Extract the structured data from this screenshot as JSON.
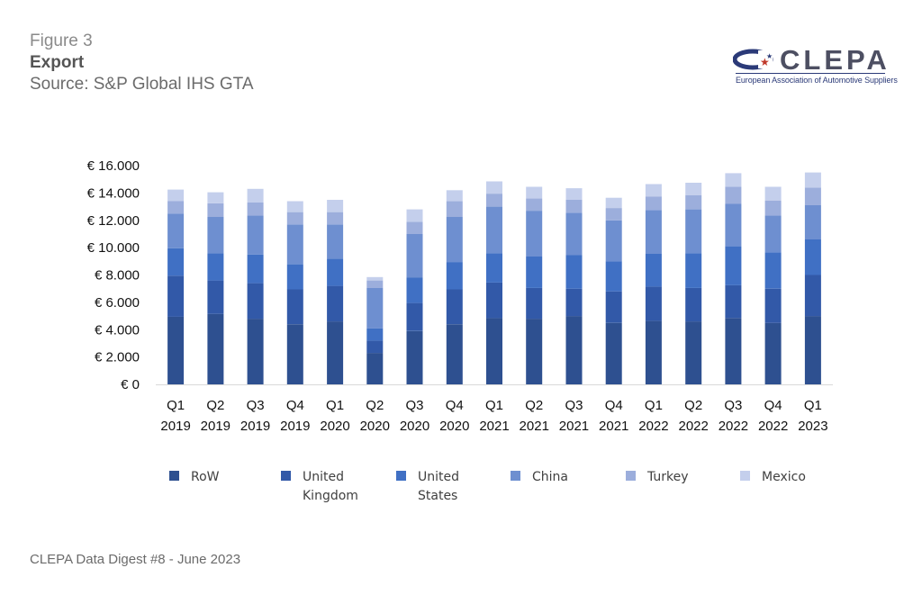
{
  "header": {
    "figure_label": "Figure 3",
    "title": "Export",
    "source": "Source: S&P Global IHS GTA"
  },
  "logo": {
    "wordmark": "CLEPA",
    "tagline": "European Association of Automotive Suppliers"
  },
  "footer": {
    "text": "CLEPA Data Digest #8 - June 2023"
  },
  "chart_data": {
    "type": "bar",
    "stacked": true,
    "grid": false,
    "legend_position": "bottom",
    "ylim": [
      0,
      16000
    ],
    "y_ticks": [
      {
        "value": 0,
        "label": "€ 0"
      },
      {
        "value": 2000,
        "label": "€ 2.000"
      },
      {
        "value": 4000,
        "label": "€ 4.000"
      },
      {
        "value": 6000,
        "label": "€ 6.000"
      },
      {
        "value": 8000,
        "label": "€ 8.000"
      },
      {
        "value": 10000,
        "label": "€ 10.000"
      },
      {
        "value": 12000,
        "label": "€ 12.000"
      },
      {
        "value": 14000,
        "label": "€ 14.000"
      },
      {
        "value": 16000,
        "label": "€ 16.000"
      }
    ],
    "categories": [
      {
        "quarter": "Q1",
        "year": "2019"
      },
      {
        "quarter": "Q2",
        "year": "2019"
      },
      {
        "quarter": "Q3",
        "year": "2019"
      },
      {
        "quarter": "Q4",
        "year": "2019"
      },
      {
        "quarter": "Q1",
        "year": "2020"
      },
      {
        "quarter": "Q2",
        "year": "2020"
      },
      {
        "quarter": "Q3",
        "year": "2020"
      },
      {
        "quarter": "Q4",
        "year": "2020"
      },
      {
        "quarter": "Q1",
        "year": "2021"
      },
      {
        "quarter": "Q2",
        "year": "2021"
      },
      {
        "quarter": "Q3",
        "year": "2021"
      },
      {
        "quarter": "Q4",
        "year": "2021"
      },
      {
        "quarter": "Q1",
        "year": "2022"
      },
      {
        "quarter": "Q2",
        "year": "2022"
      },
      {
        "quarter": "Q3",
        "year": "2022"
      },
      {
        "quarter": "Q4",
        "year": "2022"
      },
      {
        "quarter": "Q1",
        "year": "2023"
      }
    ],
    "series": [
      {
        "name": "RoW",
        "color": "#2e5090",
        "values": [
          4950,
          5150,
          4800,
          4400,
          4600,
          2300,
          3900,
          4400,
          4850,
          4800,
          5000,
          4500,
          4650,
          4600,
          4850,
          4500,
          5000
        ]
      },
      {
        "name": "United Kingdom",
        "color": "#3259a8",
        "values": [
          3000,
          2450,
          2600,
          2550,
          2600,
          900,
          2050,
          2550,
          2600,
          2250,
          2000,
          2300,
          2500,
          2450,
          2400,
          2500,
          3000
        ]
      },
      {
        "name": "United States",
        "color": "#4070c4",
        "values": [
          2000,
          2000,
          2100,
          1850,
          2000,
          900,
          1850,
          2000,
          2150,
          2300,
          2450,
          2200,
          2400,
          2550,
          2850,
          2650,
          2600
        ]
      },
      {
        "name": "China",
        "color": "#6e8fd0",
        "values": [
          2550,
          2650,
          2850,
          2900,
          2500,
          2950,
          3200,
          3300,
          3400,
          3350,
          3100,
          3000,
          3200,
          3200,
          3100,
          2700,
          2500
        ]
      },
      {
        "name": "Turkey",
        "color": "#9caedc",
        "values": [
          900,
          1000,
          950,
          900,
          900,
          550,
          900,
          1150,
          950,
          900,
          950,
          900,
          1000,
          1050,
          1250,
          1100,
          1300
        ]
      },
      {
        "name": "Mexico",
        "color": "#c4cfec",
        "values": [
          850,
          800,
          1000,
          800,
          900,
          250,
          900,
          800,
          900,
          850,
          850,
          750,
          900,
          900,
          1000,
          1000,
          1100
        ]
      }
    ],
    "legend": [
      {
        "lines": [
          "RoW"
        ]
      },
      {
        "lines": [
          "United",
          "Kingdom"
        ]
      },
      {
        "lines": [
          "United",
          "States"
        ]
      },
      {
        "lines": [
          "China"
        ]
      },
      {
        "lines": [
          "Turkey"
        ]
      },
      {
        "lines": [
          "Mexico"
        ]
      }
    ]
  }
}
